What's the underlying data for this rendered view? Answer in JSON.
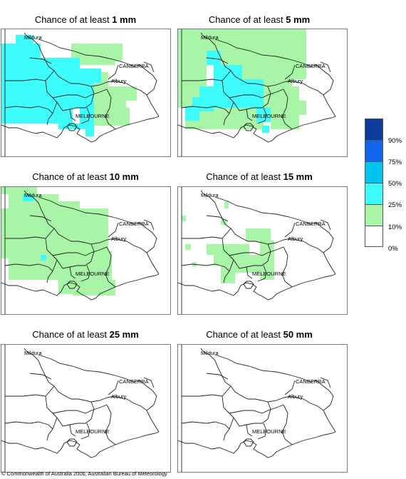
{
  "panels": [
    {
      "title_prefix": "Chance of at least ",
      "title_amount": "1 mm"
    },
    {
      "title_prefix": "Chance of at least ",
      "title_amount": "5 mm"
    },
    {
      "title_prefix": "Chance of at least ",
      "title_amount": "10 mm"
    },
    {
      "title_prefix": "Chance of at least ",
      "title_amount": "15 mm"
    },
    {
      "title_prefix": "Chance of at least ",
      "title_amount": "25 mm"
    },
    {
      "title_prefix": "Chance of at least ",
      "title_amount": "50 mm"
    }
  ],
  "place_labels": {
    "mildura": "Mildura",
    "canberra": "CANBERRA",
    "albury": "Albury",
    "melbourne": "MELBOURNE"
  },
  "legend": {
    "labels": [
      "90%",
      "75%",
      "50%",
      "25%",
      "10%",
      "0%"
    ],
    "colors": [
      "#0a3c9c",
      "#1166ee",
      "#00c4f0",
      "#3cfcfc",
      "#a8f5a8",
      "#ffffff"
    ]
  },
  "copyright": "© Commonwealth of Australia 2006, Australian Bureau of Meteorology"
}
